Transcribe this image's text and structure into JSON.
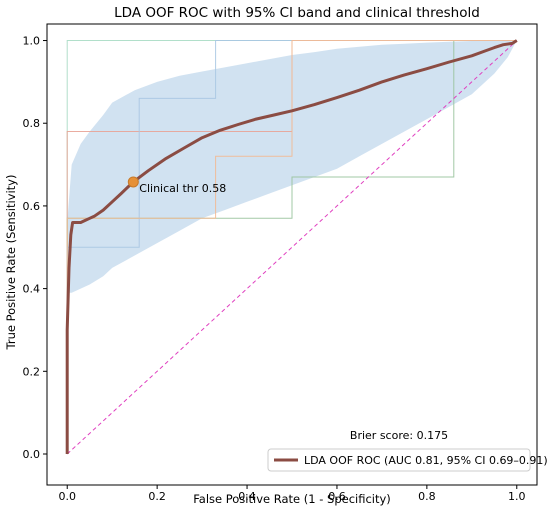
{
  "chart_data": {
    "type": "line",
    "title": "LDA OOF ROC with 95% CI band and clinical threshold",
    "xlabel": "False Positive Rate (1 - Specificity)",
    "ylabel": "True Positive Rate (Sensitivity)",
    "xlim": [
      -0.045,
      1.045
    ],
    "ylim": [
      -0.075,
      1.04
    ],
    "xticks": [
      0.0,
      0.2,
      0.4,
      0.6,
      0.8,
      1.0
    ],
    "yticks": [
      0.0,
      0.2,
      0.4,
      0.6,
      0.8,
      1.0
    ],
    "xtick_labels": [
      "0.0",
      "0.2",
      "0.4",
      "0.6",
      "0.8",
      "1.0"
    ],
    "ytick_labels": [
      "0.0",
      "0.2",
      "0.4",
      "0.6",
      "0.8",
      "1.0"
    ],
    "grid": false,
    "legend_position": "lower-right",
    "ci_band": {
      "x": [
        0,
        0.01,
        0.03,
        0.05,
        0.08,
        0.1,
        0.15,
        0.2,
        0.25,
        0.3,
        0.35,
        0.4,
        0.45,
        0.5,
        0.55,
        0.6,
        0.65,
        0.7,
        0.75,
        0.8,
        0.85,
        0.9,
        0.95,
        0.98,
        1.0
      ],
      "upper": [
        0.56,
        0.7,
        0.75,
        0.78,
        0.82,
        0.85,
        0.88,
        0.9,
        0.915,
        0.925,
        0.935,
        0.945,
        0.955,
        0.965,
        0.972,
        0.98,
        0.985,
        0.99,
        0.992,
        0.995,
        0.997,
        0.999,
        1.0,
        1.0,
        1.0
      ],
      "lower": [
        0.39,
        0.39,
        0.4,
        0.41,
        0.43,
        0.45,
        0.48,
        0.51,
        0.54,
        0.57,
        0.59,
        0.61,
        0.63,
        0.65,
        0.67,
        0.69,
        0.72,
        0.75,
        0.78,
        0.81,
        0.84,
        0.87,
        0.92,
        0.96,
        1.0
      ],
      "color": "#c9ddee"
    },
    "series": [
      {
        "name": "LDA OOF ROC (AUC 0.81, 95% CI 0.69–0.91)",
        "color": "#8b4c43",
        "x": [
          0,
          0.0,
          0.004,
          0.008,
          0.012,
          0.018,
          0.03,
          0.04,
          0.05,
          0.06,
          0.08,
          0.1,
          0.12,
          0.147,
          0.18,
          0.22,
          0.26,
          0.3,
          0.34,
          0.38,
          0.42,
          0.46,
          0.5,
          0.55,
          0.6,
          0.65,
          0.7,
          0.75,
          0.8,
          0.85,
          0.9,
          0.93,
          0.95,
          0.97,
          0.99,
          1.0
        ],
        "y": [
          0,
          0.3,
          0.45,
          0.53,
          0.56,
          0.56,
          0.56,
          0.565,
          0.57,
          0.575,
          0.59,
          0.61,
          0.63,
          0.658,
          0.685,
          0.715,
          0.74,
          0.765,
          0.783,
          0.797,
          0.81,
          0.82,
          0.83,
          0.845,
          0.862,
          0.88,
          0.9,
          0.917,
          0.932,
          0.948,
          0.963,
          0.975,
          0.983,
          0.99,
          0.993,
          1.0
        ]
      }
    ],
    "fold_curves": [
      {
        "color": "#a8dcc4",
        "x": [
          0,
          0,
          0.15,
          0.15,
          0.33,
          0.33,
          0.86,
          0.86,
          1.0
        ],
        "y": [
          0,
          1.0,
          1.0,
          1.0,
          1.0,
          1.0,
          1.0,
          1.0,
          1.0
        ]
      },
      {
        "color": "#e8a396",
        "x": [
          0,
          0,
          0.5,
          0.5,
          1.0
        ],
        "y": [
          0,
          0.78,
          0.78,
          1.0,
          1.0
        ]
      },
      {
        "color": "#98c39c",
        "x": [
          0,
          0,
          0.5,
          0.5,
          0.86,
          0.86,
          1.0
        ],
        "y": [
          0,
          0.57,
          0.57,
          0.67,
          0.67,
          1.0,
          1.0
        ]
      },
      {
        "color": "#a9c6e2",
        "x": [
          0,
          0,
          0.0,
          0.16,
          0.16,
          0.33,
          0.33,
          0.5,
          0.5,
          1.0
        ],
        "y": [
          0,
          0.5,
          0.5,
          0.5,
          0.86,
          0.86,
          1.0,
          1.0,
          1.0,
          1.0
        ]
      },
      {
        "color": "#f3b991",
        "x": [
          0,
          0,
          0.33,
          0.33,
          0.5,
          0.5,
          1.0
        ],
        "y": [
          0,
          0.57,
          0.57,
          0.72,
          0.72,
          1.0,
          1.0
        ]
      }
    ],
    "chance_line": {
      "x": [
        0,
        1
      ],
      "y": [
        0,
        1
      ],
      "color": "#e040c0"
    },
    "threshold": {
      "x": 0.147,
      "y": 0.658,
      "label": "Clinical thr 0.58",
      "color": "#e69138"
    },
    "brier_text": "Brier score: 0.175"
  }
}
